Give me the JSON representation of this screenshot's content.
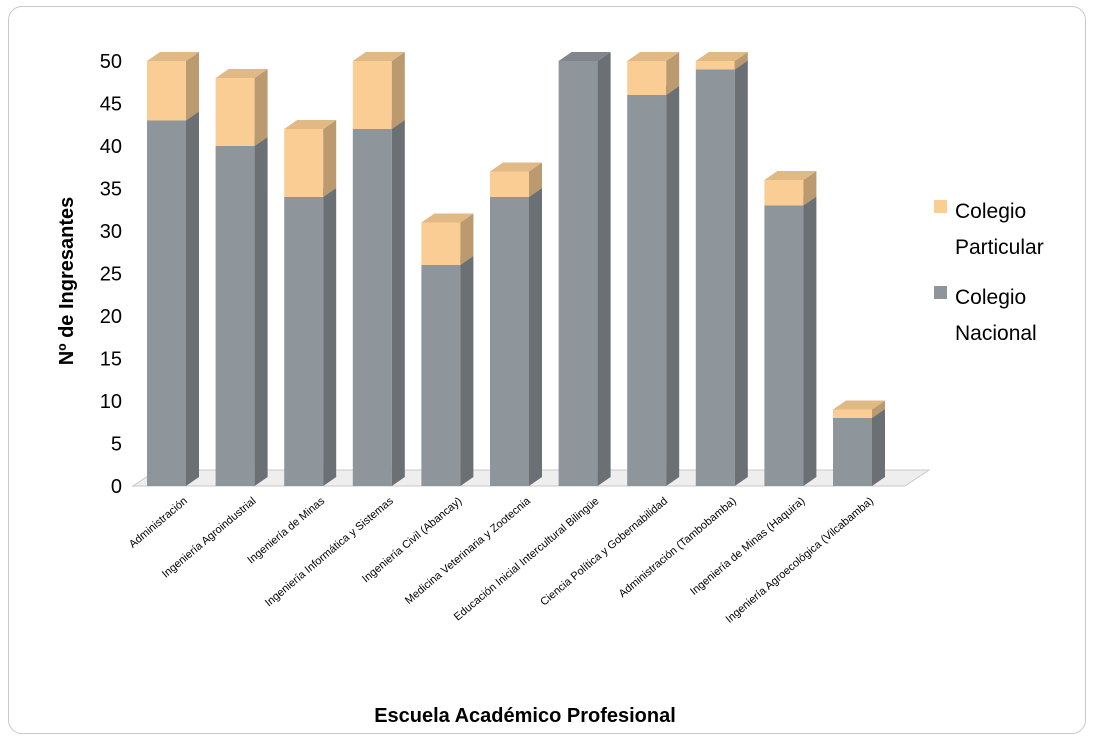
{
  "chart_data": {
    "type": "bar",
    "stacked": true,
    "three_d": true,
    "title": "",
    "xlabel": "Escuela Académico Profesional",
    "ylabel": "Nº de Ingresantes",
    "ylim": [
      0,
      50
    ],
    "yticks": [
      0,
      5,
      10,
      15,
      20,
      25,
      30,
      35,
      40,
      45,
      50
    ],
    "grid": false,
    "legend_position": "right",
    "categories": [
      "Administración",
      "Ingeniería Agroindustrial",
      "Ingeniería de Minas",
      "Ingeniería Informática y Sistemas",
      "Ingeniería Civil (Abancay)",
      "Medicina Veterinaria y Zootecnia",
      "Educación Inicial Intercultural Bilingüe",
      "Ciencia Política y Gobernabilidad",
      "Administración (Tambobamba)",
      "Ingeniería de Minas (Haquira)",
      "Ingeniería Agroecológica (Vilcabamba)"
    ],
    "series": [
      {
        "name": "Colegio Nacional",
        "color": "#8e959b",
        "values": [
          43,
          40,
          34,
          42,
          26,
          34,
          50,
          46,
          49,
          33,
          8
        ]
      },
      {
        "name": "Colegio Particular",
        "color": "#f9cd94",
        "values": [
          7,
          8,
          8,
          8,
          5,
          3,
          0,
          4,
          1,
          3,
          1
        ]
      }
    ],
    "legend": [
      {
        "label_lines": [
          "Colegio",
          "Particular"
        ],
        "color": "#f9cd94"
      },
      {
        "label_lines": [
          "Colegio",
          "Nacional"
        ],
        "color": "#8e959b"
      }
    ]
  }
}
